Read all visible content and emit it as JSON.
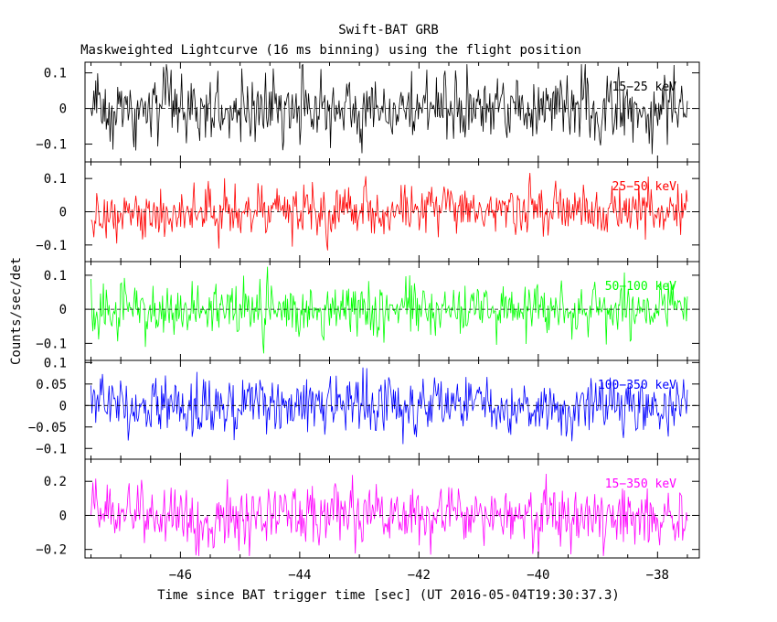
{
  "chart_data": {
    "type": "line",
    "title": "Swift-BAT GRB",
    "subtitle": "Maskweighted Lightcurve (16 ms binning) using the flight position",
    "xlabel": "Time since BAT trigger time [sec] (UT 2016-05-04T19:30:37.3)",
    "ylabel": "Counts/sec/det",
    "xlim": [
      -47.6,
      -37.3
    ],
    "x_ticks": [
      -46,
      -44,
      -42,
      -40,
      -38
    ],
    "x_tick_labels": [
      "−46",
      "−44",
      "−42",
      "−40",
      "−38"
    ],
    "data_range": [
      -47.5,
      -37.5
    ],
    "bin_width_s": 0.016,
    "panels": [
      {
        "name": "15−25 keV",
        "color": "#000000",
        "ylim": [
          -0.15,
          0.13
        ],
        "amplitude": 0.055,
        "yticks": [
          -0.1,
          0,
          0.1
        ],
        "ytick_labels": [
          "−0.1",
          "0",
          "0.1"
        ]
      },
      {
        "name": "25−50 keV",
        "color": "#ff0000",
        "ylim": [
          -0.15,
          0.15
        ],
        "amplitude": 0.045,
        "yticks": [
          -0.1,
          0,
          0.1
        ],
        "ytick_labels": [
          "−0.1",
          "0",
          "0.1"
        ]
      },
      {
        "name": "50−100 keV",
        "color": "#00ff00",
        "ylim": [
          -0.15,
          0.14
        ],
        "amplitude": 0.045,
        "yticks": [
          -0.1,
          0,
          0.1
        ],
        "ytick_labels": [
          "−0.1",
          "0",
          "0.1"
        ]
      },
      {
        "name": "100−350 keV",
        "color": "#0000ff",
        "ylim": [
          -0.125,
          0.105
        ],
        "amplitude": 0.038,
        "yticks": [
          -0.1,
          -0.05,
          0,
          0.05,
          0.1
        ],
        "ytick_labels": [
          "−0.1",
          "−0.05",
          "0",
          "0.05",
          "0.1"
        ]
      },
      {
        "name": "15−350 keV",
        "color": "#ff00ff",
        "ylim": [
          -0.25,
          0.33
        ],
        "amplitude": 0.1,
        "yticks": [
          -0.2,
          0,
          0.2
        ],
        "ytick_labels": [
          "−0.2",
          "0",
          "0.2"
        ]
      }
    ]
  }
}
